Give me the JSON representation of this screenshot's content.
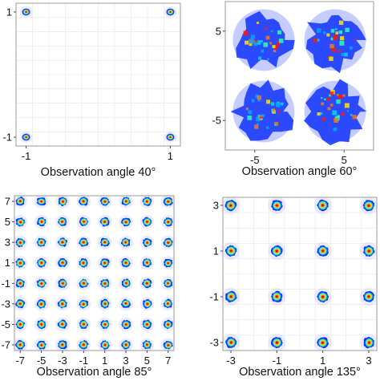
{
  "chart_data": [
    {
      "type": "heatmap",
      "title": "",
      "xlabel": "Observation angle 40°",
      "ylabel": "",
      "xlim": [
        -1.14,
        1.14
      ],
      "ylim": [
        -1.14,
        1.14
      ],
      "x_ticks": [
        -1,
        1
      ],
      "y_ticks": [
        -1,
        1
      ],
      "grid": true,
      "colormap": "jet",
      "spot_centers_x": [
        -1,
        1
      ],
      "spot_centers_y": [
        -1,
        1
      ],
      "spot_radius": 0.055,
      "spot_noise": 0.0
    },
    {
      "type": "heatmap",
      "title": "",
      "xlabel": "Observation angle 60°",
      "ylabel": "",
      "xlim": [
        -8.3,
        8.3
      ],
      "ylim": [
        -8.3,
        8.3
      ],
      "x_ticks": [
        -5,
        5
      ],
      "y_ticks": [
        -5,
        5
      ],
      "grid": false,
      "colormap": "jet",
      "spot_centers_x": [
        -4,
        4
      ],
      "spot_centers_y": [
        -4,
        4
      ],
      "spot_radius": 3.0,
      "spot_noise": 0.55
    },
    {
      "type": "heatmap",
      "title": "",
      "xlabel": "Observation angle 85°",
      "ylabel": "",
      "xlim": [
        -7.55,
        7.55
      ],
      "ylim": [
        -7.55,
        7.55
      ],
      "x_ticks": [
        -7,
        -5,
        -3,
        -1,
        1,
        3,
        5,
        7
      ],
      "y_ticks": [
        -7,
        -5,
        -3,
        -1,
        1,
        3,
        5,
        7
      ],
      "grid": false,
      "colormap": "jet",
      "spot_centers_x": [
        -7,
        -5,
        -3,
        -1,
        1,
        3,
        5,
        7
      ],
      "spot_centers_y": [
        -7,
        -5,
        -3,
        -1,
        1,
        3,
        5,
        7
      ],
      "spot_radius": 0.42,
      "spot_noise": 0.3
    },
    {
      "type": "heatmap",
      "title": "",
      "xlabel": "Observation angle 135°",
      "ylabel": "",
      "xlim": [
        -3.35,
        3.35
      ],
      "ylim": [
        -3.35,
        3.35
      ],
      "x_ticks": [
        -3,
        -1,
        1,
        3
      ],
      "y_ticks": [
        -3,
        -1,
        1,
        3
      ],
      "grid": true,
      "colormap": "jet",
      "spot_centers_x": [
        -3,
        -1,
        1,
        3
      ],
      "spot_centers_y": [
        -3,
        -1,
        1,
        3
      ],
      "spot_radius": 0.24,
      "spot_noise": 0.2
    }
  ]
}
